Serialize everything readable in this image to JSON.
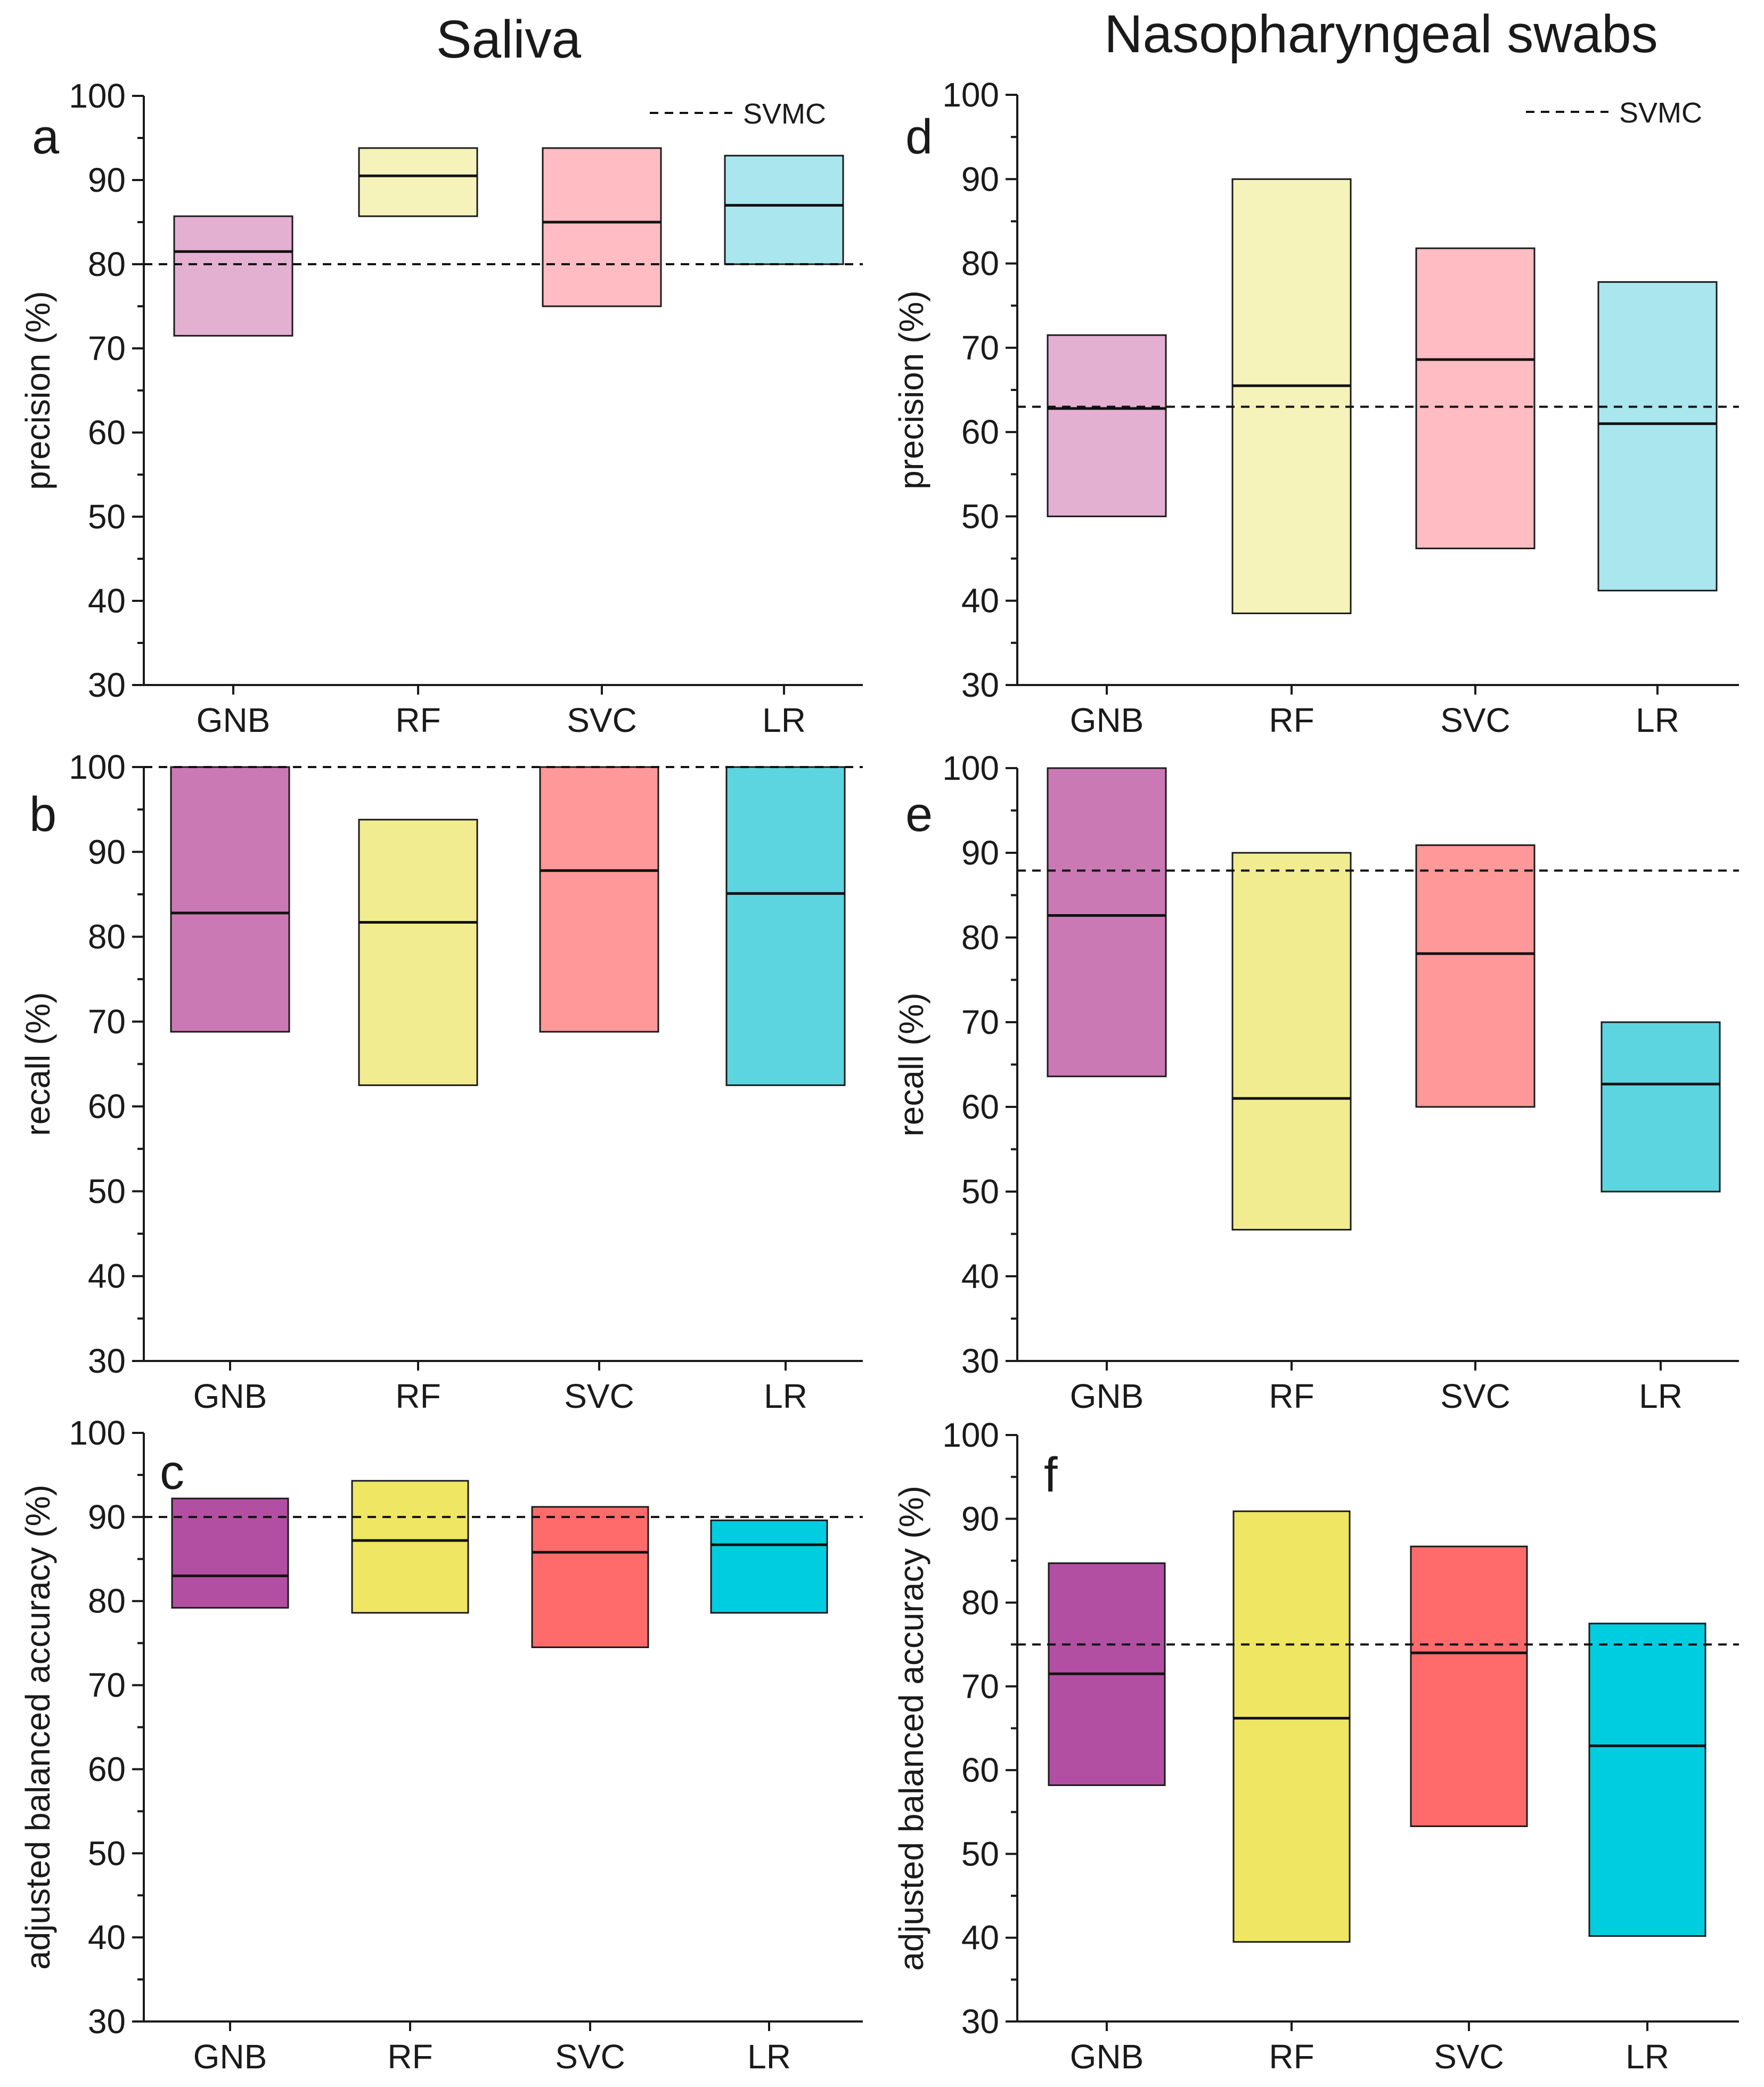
{
  "column_titles": [
    "Saliva",
    "Nasopharyngeal swabs"
  ],
  "chart_data": [
    {
      "type": "box",
      "panel": "a",
      "group": "Saliva",
      "title": "",
      "xlabel": "",
      "ylabel": "precision (%)",
      "ylim": [
        30,
        100
      ],
      "yticks": [
        30,
        40,
        50,
        60,
        70,
        80,
        90,
        100
      ],
      "ytick_labels": [
        "30",
        "40",
        "50",
        "60",
        "70",
        "80",
        "90",
        "100"
      ],
      "categories": [
        "GNB",
        "RF",
        "SVC",
        "LR"
      ],
      "boxes": [
        {
          "category": "GNB",
          "low": 71.5,
          "median": 81.5,
          "high": 85.7
        },
        {
          "category": "RF",
          "low": 85.7,
          "median": 90.5,
          "high": 93.8
        },
        {
          "category": "SVC",
          "low": 75.0,
          "median": 85.0,
          "high": 93.8
        },
        {
          "category": "LR",
          "low": 80.0,
          "median": 87.0,
          "high": 92.9
        }
      ],
      "reference": {
        "name": "SVMC",
        "value": 80.0,
        "style": "dashed"
      },
      "legend": {
        "label": "SVMC",
        "position": "top-right"
      },
      "colors": [
        "#e4b0d2",
        "#f5f3b9",
        "#ffbcc2",
        "#a9e6ee"
      ]
    },
    {
      "type": "box",
      "panel": "b",
      "group": "Saliva",
      "title": "",
      "xlabel": "",
      "ylabel": "recall (%)",
      "ylim": [
        30,
        100
      ],
      "yticks": [
        30,
        40,
        50,
        60,
        70,
        80,
        90,
        100
      ],
      "ytick_labels": [
        "30",
        "40",
        "50",
        "60",
        "70",
        "80",
        "90",
        "100"
      ],
      "categories": [
        "GNB",
        "RF",
        "SVC",
        "LR"
      ],
      "boxes": [
        {
          "category": "GNB",
          "low": 68.8,
          "median": 82.8,
          "high": 100.0
        },
        {
          "category": "RF",
          "low": 62.5,
          "median": 81.7,
          "high": 93.8
        },
        {
          "category": "SVC",
          "low": 68.8,
          "median": 87.8,
          "high": 100.0
        },
        {
          "category": "LR",
          "low": 62.5,
          "median": 85.1,
          "high": 100.0
        }
      ],
      "reference": {
        "name": "SVMC",
        "value": 100.0,
        "style": "dashed"
      },
      "colors": [
        "#cb79b5",
        "#f2ec91",
        "#ff9898",
        "#5dd5e0"
      ]
    },
    {
      "type": "box",
      "panel": "c",
      "group": "Saliva",
      "title": "",
      "xlabel": "",
      "ylabel": "adjusted balanced accuracy (%)",
      "ylim": [
        30,
        100
      ],
      "yticks": [
        30,
        40,
        50,
        60,
        70,
        80,
        90,
        100
      ],
      "ytick_labels": [
        "30",
        "40",
        "50",
        "60",
        "70",
        "80",
        "90",
        "100"
      ],
      "categories": [
        "GNB",
        "RF",
        "SVC",
        "LR"
      ],
      "boxes": [
        {
          "category": "GNB",
          "low": 79.2,
          "median": 83.0,
          "high": 92.2
        },
        {
          "category": "RF",
          "low": 78.6,
          "median": 87.2,
          "high": 94.3
        },
        {
          "category": "SVC",
          "low": 74.5,
          "median": 85.8,
          "high": 91.2
        },
        {
          "category": "LR",
          "low": 78.6,
          "median": 86.7,
          "high": 89.6
        }
      ],
      "reference": {
        "name": "SVMC",
        "value": 90.0,
        "style": "dashed"
      },
      "colors": [
        "#b24fa3",
        "#efe664",
        "#ff6b6b",
        "#00cde0"
      ]
    },
    {
      "type": "box",
      "panel": "d",
      "group": "Nasopharyngeal swabs",
      "title": "",
      "xlabel": "",
      "ylabel": "precision (%)",
      "ylim": [
        30,
        100
      ],
      "yticks": [
        30,
        40,
        50,
        60,
        70,
        80,
        90,
        100
      ],
      "ytick_labels": [
        "30",
        "40",
        "50",
        "60",
        "70",
        "80",
        "90",
        "100"
      ],
      "categories": [
        "GNB",
        "RF",
        "SVC",
        "LR"
      ],
      "boxes": [
        {
          "category": "GNB",
          "low": 50.0,
          "median": 62.8,
          "high": 71.5
        },
        {
          "category": "RF",
          "low": 38.5,
          "median": 65.5,
          "high": 90.0
        },
        {
          "category": "SVC",
          "low": 46.2,
          "median": 68.6,
          "high": 81.8
        },
        {
          "category": "LR",
          "low": 41.2,
          "median": 61.0,
          "high": 77.8
        }
      ],
      "reference": {
        "name": "SVMC",
        "value": 63.0,
        "style": "dashed"
      },
      "legend": {
        "label": "SVMC",
        "position": "top-right"
      },
      "colors": [
        "#e4b0d2",
        "#f5f3b9",
        "#ffbcc2",
        "#a9e6ee"
      ]
    },
    {
      "type": "box",
      "panel": "e",
      "group": "Nasopharyngeal swabs",
      "title": "",
      "xlabel": "",
      "ylabel": "recall (%)",
      "ylim": [
        30,
        100
      ],
      "yticks": [
        30,
        40,
        50,
        60,
        70,
        80,
        90,
        100
      ],
      "ytick_labels": [
        "30",
        "40",
        "50",
        "60",
        "70",
        "80",
        "90",
        "100"
      ],
      "categories": [
        "GNB",
        "RF",
        "SVC",
        "LR"
      ],
      "boxes": [
        {
          "category": "GNB",
          "low": 63.6,
          "median": 82.6,
          "high": 100.0
        },
        {
          "category": "RF",
          "low": 45.5,
          "median": 61.0,
          "high": 90.0
        },
        {
          "category": "SVC",
          "low": 60.0,
          "median": 78.1,
          "high": 90.9
        },
        {
          "category": "LR",
          "low": 50.0,
          "median": 62.7,
          "high": 70.0
        }
      ],
      "reference": {
        "name": "SVMC",
        "value": 87.9,
        "style": "dashed"
      },
      "colors": [
        "#cb79b5",
        "#f2ec91",
        "#ff9898",
        "#5dd5e0"
      ]
    },
    {
      "type": "box",
      "panel": "f",
      "group": "Nasopharyngeal swabs",
      "title": "",
      "xlabel": "",
      "ylabel": "adjusted balanced accuracy (%)",
      "ylim": [
        30,
        100
      ],
      "yticks": [
        30,
        40,
        50,
        60,
        70,
        80,
        90,
        100
      ],
      "ytick_labels": [
        "30",
        "40",
        "50",
        "60",
        "70",
        "80",
        "90",
        "100"
      ],
      "categories": [
        "GNB",
        "RF",
        "SVC",
        "LR"
      ],
      "boxes": [
        {
          "category": "GNB",
          "low": 58.2,
          "median": 71.5,
          "high": 84.7
        },
        {
          "category": "RF",
          "low": 39.5,
          "median": 66.2,
          "high": 90.9
        },
        {
          "category": "SVC",
          "low": 53.3,
          "median": 74.0,
          "high": 86.7
        },
        {
          "category": "LR",
          "low": 40.2,
          "median": 62.9,
          "high": 77.5
        }
      ],
      "reference": {
        "name": "SVMC",
        "value": 75.0,
        "style": "dashed"
      },
      "colors": [
        "#b24fa3",
        "#efe664",
        "#ff6b6b",
        "#00cde0"
      ]
    }
  ]
}
